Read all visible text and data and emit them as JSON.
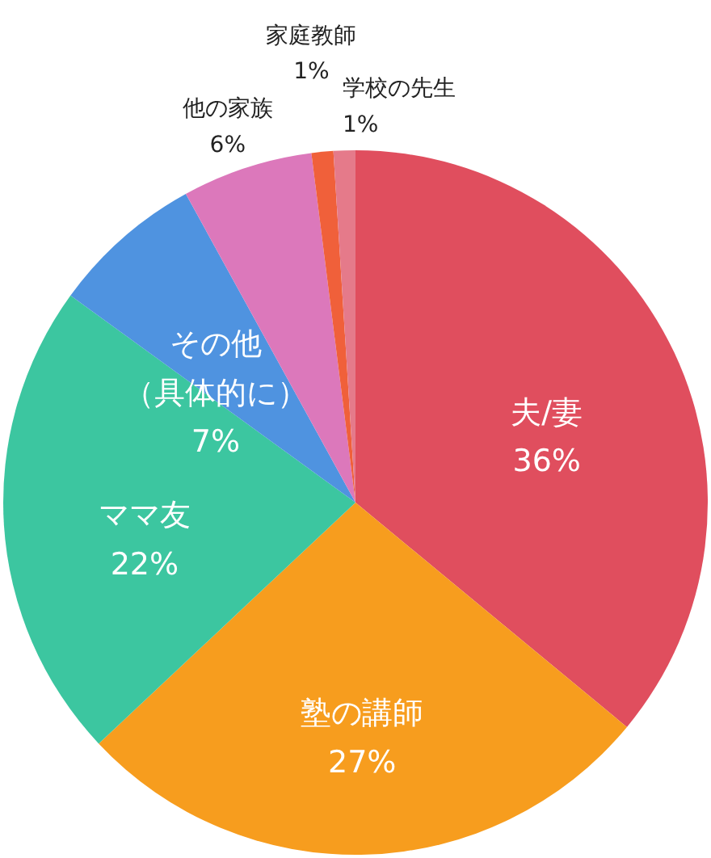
{
  "chart_data": {
    "type": "pie",
    "categories": [
      "夫/妻",
      "塾の講師",
      "ママ友",
      "その他（具体的に）",
      "他の家族",
      "家庭教師",
      "学校の先生"
    ],
    "values": [
      36,
      27,
      22,
      7,
      6,
      1,
      1
    ],
    "value_labels": [
      "36%",
      "27%",
      "22%",
      "7%",
      "6%",
      "1%",
      "1%"
    ],
    "colors": [
      "#e04e5e",
      "#f79d1e",
      "#3cc6a0",
      "#4f93e0",
      "#dc78bb",
      "#f0603a",
      "#e57a8a"
    ]
  }
}
